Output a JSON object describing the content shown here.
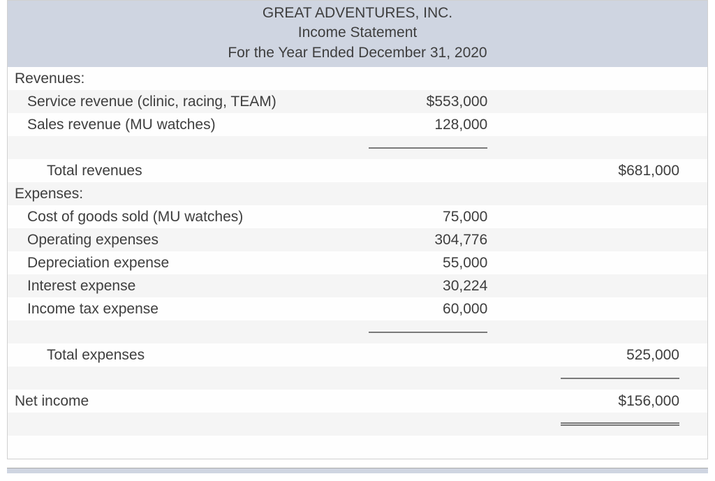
{
  "header": {
    "company": "GREAT ADVENTURES, INC.",
    "title": "Income Statement",
    "period": "For the Year Ended December 31, 2020"
  },
  "sections": {
    "revenues_label": "Revenues:",
    "service_revenue_label": "Service revenue (clinic, racing, TEAM)",
    "service_revenue_value": "$553,000",
    "sales_revenue_label": "Sales revenue (MU watches)",
    "sales_revenue_value": "128,000",
    "total_revenues_label": "Total revenues",
    "total_revenues_value": "$681,000",
    "expenses_label": "Expenses:",
    "cogs_label": "Cost of goods sold (MU watches)",
    "cogs_value": "75,000",
    "opex_label": "Operating expenses",
    "opex_value": "304,776",
    "depr_label": "Depreciation expense",
    "depr_value": "55,000",
    "int_label": "Interest expense",
    "int_value": "30,224",
    "tax_label": "Income tax expense",
    "tax_value": "60,000",
    "total_expenses_label": "Total expenses",
    "total_expenses_value": "525,000",
    "net_income_label": "Net income",
    "net_income_value": "$156,000"
  },
  "styling": {
    "header_bg": "#cfd5e1",
    "row_odd_bg": "#fefefe",
    "row_even_bg": "#f5f5f5",
    "rule_color": "#7a7a7a",
    "font_size": 21,
    "text_color": "#3e3e3e"
  }
}
